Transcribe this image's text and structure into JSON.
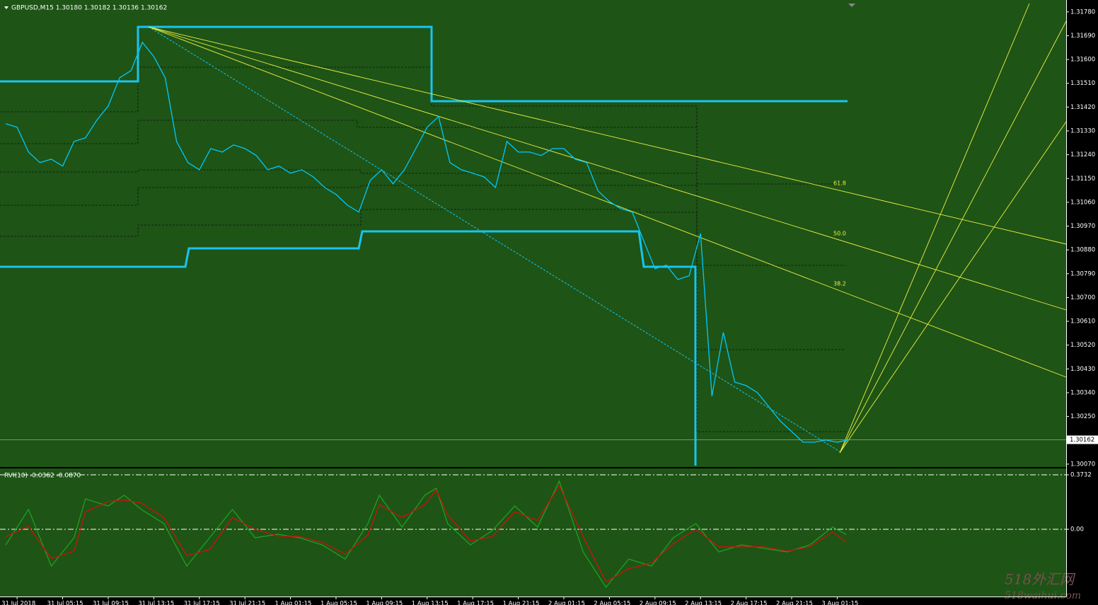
{
  "chart_data": [
    {
      "type": "line",
      "title": "GBPUSD,M15  1.30180 1.30182 1.30136 1.30162",
      "xlim": [
        -1.5,
        92.1
      ],
      "ylim": [
        1.30059,
        1.31825
      ],
      "yticks": [
        {
          "value": 1.3178,
          "label": "1.31780"
        },
        {
          "value": 1.3169,
          "label": "1.31690"
        },
        {
          "value": 1.316,
          "label": "1.31600"
        },
        {
          "value": 1.3151,
          "label": "1.31510"
        },
        {
          "value": 1.3142,
          "label": "1.31420"
        },
        {
          "value": 1.3133,
          "label": "1.31330"
        },
        {
          "value": 1.3124,
          "label": "1.31240"
        },
        {
          "value": 1.3115,
          "label": "1.31150"
        },
        {
          "value": 1.3106,
          "label": "1.31060"
        },
        {
          "value": 1.3097,
          "label": "1.30970"
        },
        {
          "value": 1.3088,
          "label": "1.30880"
        },
        {
          "value": 1.3079,
          "label": "1.30790"
        },
        {
          "value": 1.307,
          "label": "1.30700"
        },
        {
          "value": 1.3061,
          "label": "1.30610"
        },
        {
          "value": 1.3052,
          "label": "1.30520"
        },
        {
          "value": 1.3043,
          "label": "1.30430"
        },
        {
          "value": 1.3034,
          "label": "1.30340"
        },
        {
          "value": 1.3025,
          "label": "1.30250"
        },
        {
          "value": 1.3007,
          "label": "1.30070"
        }
      ],
      "price_line": {
        "value": 1.30162,
        "label": "1.30162"
      },
      "annotations": [
        "61.8",
        "50.0",
        "38.2"
      ],
      "series": [
        {
          "name": "GBPUSD",
          "color": "#00c8ff",
          "x": [
            -1,
            0,
            1,
            2,
            3,
            4,
            5,
            6,
            7,
            8,
            9,
            10,
            11,
            12,
            13,
            14,
            15,
            16,
            17,
            18,
            19,
            20,
            21,
            22,
            23,
            24,
            25,
            26,
            27,
            28,
            29,
            30,
            31,
            32,
            33,
            34,
            35,
            36,
            37,
            38,
            39,
            40,
            41,
            42,
            43,
            44,
            45,
            46,
            47,
            48,
            49,
            50,
            51,
            52,
            53,
            54,
            55,
            56,
            57,
            58,
            59,
            60,
            61,
            62,
            63,
            64,
            65,
            66,
            67,
            68,
            69,
            70,
            71,
            72,
            73
          ],
          "values": [
            1.31357,
            1.31344,
            1.3125,
            1.3121,
            1.31223,
            1.31197,
            1.3129,
            1.31304,
            1.31371,
            1.31424,
            1.31531,
            1.31558,
            1.31665,
            1.31611,
            1.31531,
            1.3129,
            1.3121,
            1.31183,
            1.31263,
            1.3125,
            1.31277,
            1.31263,
            1.31237,
            1.31183,
            1.31197,
            1.3117,
            1.31183,
            1.31156,
            1.31116,
            1.3109,
            1.31049,
            1.31023,
            1.31143,
            1.31183,
            1.3113,
            1.31183,
            1.31263,
            1.31344,
            1.31384,
            1.3121,
            1.31183,
            1.3117,
            1.31156,
            1.31116,
            1.3129,
            1.3125,
            1.3125,
            1.31237,
            1.31263,
            1.31263,
            1.31223,
            1.3121,
            1.31103,
            1.31063,
            1.31036,
            1.31023,
            1.30916,
            1.30809,
            1.30822,
            1.30768,
            1.30782,
            1.30942,
            1.30327,
            1.30568,
            1.3038,
            1.30367,
            1.3034,
            1.30287,
            1.30233,
            1.30193,
            1.30153,
            1.30153,
            1.30161,
            1.30153,
            1.30162
          ]
        }
      ]
    },
    {
      "type": "line",
      "title": "RVI(10) -0.0362 -0.0870",
      "xlim": [
        -1.5,
        92.1
      ],
      "ylim": [
        -0.4604,
        0.4168
      ],
      "yticks": [
        0.3732,
        {
          "value": 0,
          "label": "0.00"
        }
      ],
      "xticks": [
        {
          "value": 0,
          "label": "31 Jul 2018"
        },
        {
          "value": 4,
          "label": "31 Jul 05:15"
        },
        {
          "value": 8,
          "label": "31 Jul 09:15"
        },
        {
          "value": 12,
          "label": "31 Jul 13:15"
        },
        {
          "value": 16,
          "label": "31 Jul 17:15"
        },
        {
          "value": 20,
          "label": "31 Jul 21:15"
        },
        {
          "value": 24,
          "label": "1 Aug 01:15"
        },
        {
          "value": 28,
          "label": "1 Aug 05:15"
        },
        {
          "value": 32,
          "label": "1 Aug 09:15"
        },
        {
          "value": 36,
          "label": "1 Aug 13:15"
        },
        {
          "value": 40,
          "label": "1 Aug 17:15"
        },
        {
          "value": 44,
          "label": "1 Aug 21:15"
        },
        {
          "value": 48,
          "label": "2 Aug 01:15"
        },
        {
          "value": 52,
          "label": "2 Aug 05:15"
        },
        {
          "value": 56,
          "label": "2 Aug 09:15"
        },
        {
          "value": 60,
          "label": "2 Aug 13:15"
        },
        {
          "value": 64,
          "label": "2 Aug 17:15"
        },
        {
          "value": 68,
          "label": "2 Aug 21:15"
        },
        {
          "value": 72,
          "label": "3 Aug 01:15"
        }
      ],
      "series": [
        {
          "name": "RVI",
          "color": "#1fa01f",
          "x": [
            -1,
            1,
            3,
            5,
            6,
            8,
            9.4,
            10.9,
            12.9,
            14.9,
            16.9,
            18.9,
            20.9,
            22.9,
            24.8,
            26.8,
            28.8,
            30.8,
            31.8,
            33.8,
            35.8,
            36.8,
            37.8,
            39.8,
            41.7,
            43.7,
            45.7,
            47.6,
            49.7,
            51.7,
            53.7,
            55.7,
            57.6,
            59.6,
            61.6,
            63.6,
            65.6,
            67.6,
            69.6,
            71.6,
            72.8
          ],
          "values": [
            -0.107,
            0.136,
            -0.252,
            -0.058,
            0.208,
            0.16,
            0.233,
            0.136,
            0.039,
            -0.252,
            -0.058,
            0.136,
            -0.058,
            -0.034,
            -0.058,
            -0.107,
            -0.204,
            0.039,
            0.233,
            0.015,
            0.233,
            0.281,
            0.039,
            -0.107,
            -0.01,
            0.16,
            0.015,
            0.33,
            -0.155,
            -0.397,
            -0.204,
            -0.252,
            -0.058,
            0.039,
            -0.155,
            -0.107,
            -0.131,
            -0.155,
            -0.107,
            0.015,
            -0.036
          ]
        },
        {
          "name": "Signal",
          "color": "#d01010",
          "x": [
            -1,
            1,
            3,
            5,
            6,
            8,
            9.4,
            10.9,
            12.9,
            14.9,
            16.9,
            18.9,
            20.9,
            22.9,
            24.8,
            26.8,
            28.8,
            30.8,
            31.8,
            33.8,
            35.8,
            36.8,
            37.8,
            39.8,
            41.7,
            43.7,
            45.7,
            47.6,
            49.7,
            51.7,
            53.7,
            55.7,
            57.6,
            59.6,
            61.6,
            63.6,
            65.6,
            67.6,
            69.6,
            71.6,
            72.8
          ],
          "values": [
            -0.05,
            0.02,
            -0.2,
            -0.15,
            0.12,
            0.19,
            0.2,
            0.18,
            0.08,
            -0.18,
            -0.14,
            0.08,
            0.0,
            -0.045,
            -0.05,
            -0.09,
            -0.17,
            -0.04,
            0.17,
            0.08,
            0.17,
            0.27,
            0.1,
            -0.08,
            -0.05,
            0.12,
            0.06,
            0.3,
            -0.05,
            -0.36,
            -0.27,
            -0.23,
            -0.1,
            0.0,
            -0.12,
            -0.12,
            -0.12,
            -0.15,
            -0.12,
            -0.02,
            -0.087
          ]
        }
      ]
    }
  ],
  "watermark": {
    "line1": "518外汇网",
    "line2": "518waihui.com"
  }
}
